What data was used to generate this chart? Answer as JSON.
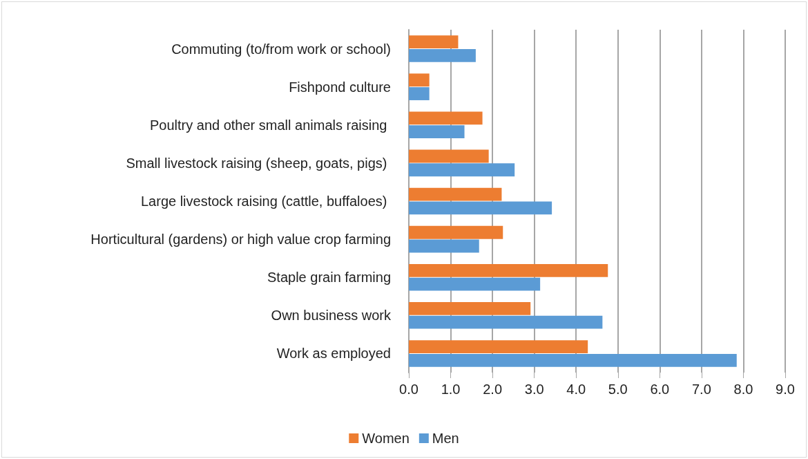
{
  "chart_data": {
    "type": "bar",
    "orientation": "horizontal",
    "categories": [
      "Commuting (to/from work or school)",
      "Fishpond culture",
      "Poultry and other small animals raising ",
      "Small livestock raising (sheep, goats, pigs) ",
      "Large livestock raising (cattle, buffaloes) ",
      "Horticultural (gardens) or high value crop farming",
      "Staple grain farming",
      "Own business work",
      "Work as employed"
    ],
    "series": [
      {
        "name": "Women",
        "color": "#ed7d31",
        "values": [
          1.18,
          0.49,
          1.76,
          1.91,
          2.22,
          2.25,
          4.76,
          2.91,
          4.28
        ]
      },
      {
        "name": "Men",
        "color": "#5b9bd5",
        "values": [
          1.6,
          0.49,
          1.33,
          2.53,
          3.42,
          1.68,
          3.14,
          4.63,
          7.84
        ]
      }
    ],
    "xlim": [
      0,
      9
    ],
    "xticks": [
      {
        "value": 0,
        "label": "0.0"
      },
      {
        "value": 1,
        "label": "1.0"
      },
      {
        "value": 2,
        "label": "2.0"
      },
      {
        "value": 3,
        "label": "3.0"
      },
      {
        "value": 4,
        "label": "4.0"
      },
      {
        "value": 5,
        "label": "5.0"
      },
      {
        "value": 6,
        "label": "6.0"
      },
      {
        "value": 7,
        "label": "7.0"
      },
      {
        "value": 8,
        "label": "8.0"
      },
      {
        "value": 9,
        "label": "9.0"
      }
    ],
    "grid": "x",
    "legend": "bottom"
  }
}
